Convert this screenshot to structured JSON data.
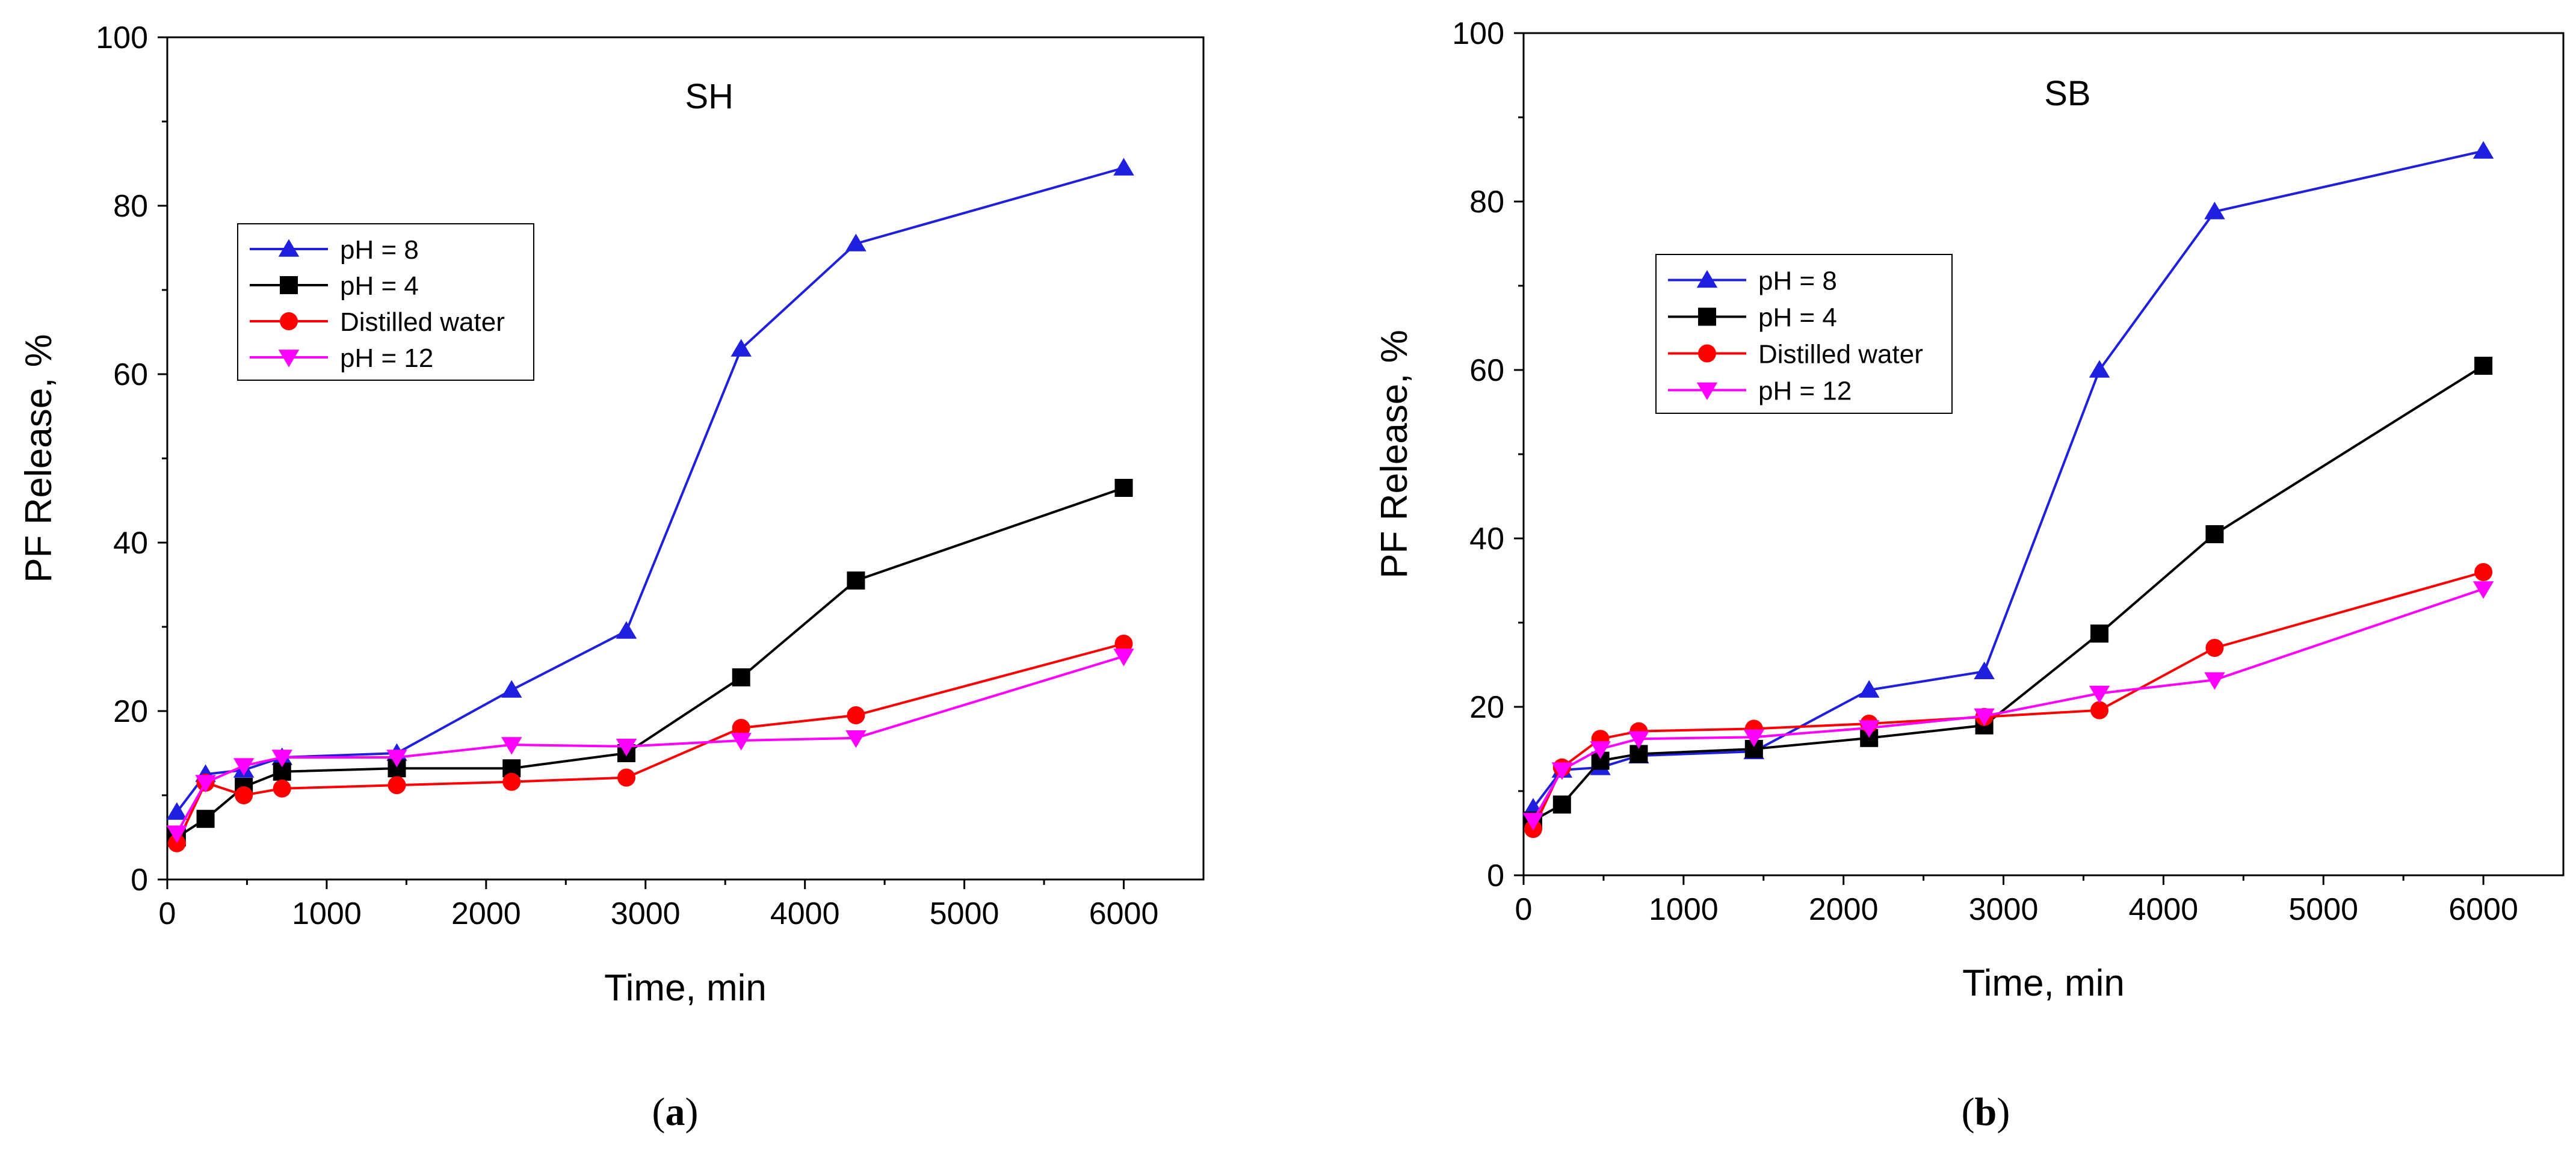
{
  "chart_data": [
    {
      "type": "line",
      "panel": "a",
      "title": "SH",
      "xlabel": "Time, min",
      "ylabel": "PF Release, %",
      "xlim": [
        0,
        6500
      ],
      "ylim": [
        0,
        100
      ],
      "xticks": [
        0,
        1000,
        2000,
        3000,
        4000,
        5000,
        6000
      ],
      "yticks": [
        0,
        20,
        40,
        60,
        80,
        100
      ],
      "legend_position": "upper-left",
      "series": [
        {
          "name": "pH = 8",
          "color": "#1f1fe0",
          "marker": "triangle-up",
          "x": [
            60,
            240,
            480,
            720,
            1440,
            2160,
            2880,
            3600,
            4320,
            6000
          ],
          "y": [
            8,
            12.5,
            13,
            14.5,
            15,
            22.5,
            29.5,
            63,
            75.5,
            84.5
          ]
        },
        {
          "name": "pH = 4",
          "color": "#000000",
          "marker": "square",
          "x": [
            60,
            240,
            480,
            720,
            1440,
            2160,
            2880,
            3600,
            4320,
            6000
          ],
          "y": [
            5,
            7.2,
            11,
            12.8,
            13.2,
            13.2,
            15,
            24,
            35.5,
            46.5
          ]
        },
        {
          "name": "Distilled water",
          "color": "#ff0000",
          "marker": "circle",
          "x": [
            60,
            240,
            480,
            720,
            1440,
            2160,
            2880,
            3600,
            4320,
            6000
          ],
          "y": [
            4.3,
            11.5,
            10,
            10.8,
            11.2,
            11.6,
            12.1,
            18,
            19.5,
            28
          ]
        },
        {
          "name": "pH = 12",
          "color": "#ff00ff",
          "marker": "triangle-down",
          "x": [
            60,
            240,
            480,
            720,
            1440,
            2160,
            2880,
            3600,
            4320,
            6000
          ],
          "y": [
            5.5,
            11.5,
            13.5,
            14.5,
            14.5,
            16,
            15.8,
            16.5,
            16.8,
            26.5
          ]
        }
      ]
    },
    {
      "type": "line",
      "panel": "b",
      "title": "SB",
      "xlabel": "Time, min",
      "ylabel": "PF Release, %",
      "xlim": [
        0,
        6500
      ],
      "ylim": [
        0,
        100
      ],
      "xticks": [
        0,
        1000,
        2000,
        3000,
        4000,
        5000,
        6000
      ],
      "yticks": [
        0,
        20,
        40,
        60,
        80,
        100
      ],
      "legend_position": "upper-left",
      "series": [
        {
          "name": "pH = 8",
          "color": "#1f1fe0",
          "marker": "triangle-up",
          "x": [
            60,
            240,
            480,
            720,
            1440,
            2160,
            2880,
            3600,
            4320,
            6000
          ],
          "y": [
            8,
            12.5,
            12.8,
            14.2,
            14.7,
            22,
            24.2,
            60,
            78.8,
            86
          ]
        },
        {
          "name": "pH = 4",
          "color": "#000000",
          "marker": "square",
          "x": [
            60,
            240,
            480,
            720,
            1440,
            2160,
            2880,
            3600,
            4320,
            6000
          ],
          "y": [
            6.5,
            8.4,
            13.6,
            14.4,
            15,
            16.3,
            17.8,
            28.7,
            40.5,
            60.5
          ]
        },
        {
          "name": "Distilled water",
          "color": "#ff0000",
          "marker": "circle",
          "x": [
            60,
            240,
            480,
            720,
            1440,
            2160,
            2880,
            3600,
            4320,
            6000
          ],
          "y": [
            5.5,
            12.8,
            16.2,
            17.1,
            17.4,
            18,
            18.8,
            19.6,
            27,
            36
          ]
        },
        {
          "name": "pH = 12",
          "color": "#ff00ff",
          "marker": "triangle-down",
          "x": [
            60,
            240,
            480,
            720,
            1440,
            2160,
            2880,
            3600,
            4320,
            6000
          ],
          "y": [
            6.5,
            12.5,
            15,
            16.2,
            16.4,
            17.5,
            18.9,
            21.6,
            23.2,
            34
          ]
        }
      ]
    }
  ],
  "panel_labels": {
    "a": "a",
    "b": "b"
  }
}
